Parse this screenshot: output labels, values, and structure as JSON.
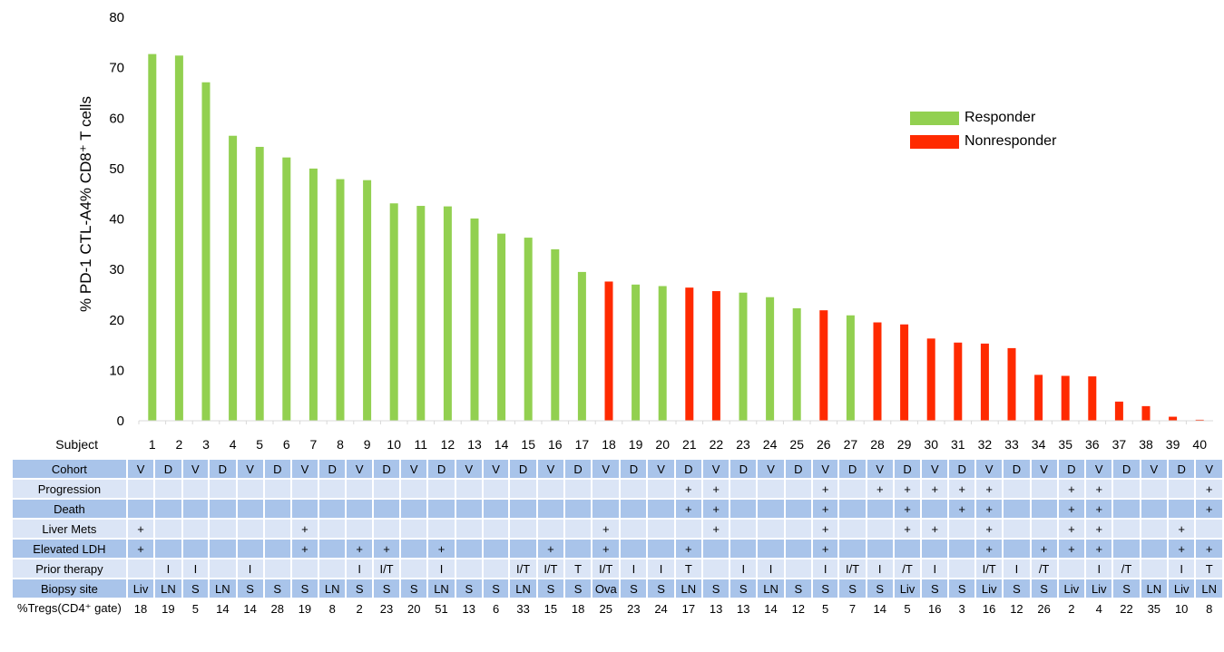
{
  "chart_data": {
    "type": "bar",
    "ylabel": "% PD-1 CTL-A4% CD8⁺ T cells",
    "ylim": [
      0,
      80
    ],
    "yticks": [
      0,
      10,
      20,
      30,
      40,
      50,
      60,
      70,
      80
    ],
    "categories": [
      "1",
      "2",
      "3",
      "4",
      "5",
      "6",
      "7",
      "8",
      "9",
      "10",
      "11",
      "12",
      "13",
      "14",
      "15",
      "16",
      "17",
      "18",
      "19",
      "20",
      "21",
      "22",
      "23",
      "24",
      "25",
      "26",
      "27",
      "28",
      "29",
      "30",
      "31",
      "32",
      "33",
      "34",
      "35",
      "36",
      "37",
      "38",
      "39",
      "40"
    ],
    "values": [
      72.7,
      72.4,
      67.1,
      56.5,
      54.3,
      52.2,
      50.0,
      47.9,
      47.7,
      43.1,
      42.6,
      42.5,
      40.1,
      37.1,
      36.3,
      34.0,
      29.5,
      27.6,
      27.0,
      26.7,
      26.4,
      25.7,
      25.4,
      24.5,
      22.3,
      21.9,
      20.9,
      19.5,
      19.1,
      16.3,
      15.5,
      15.3,
      14.4,
      9.1,
      8.9,
      8.8,
      3.8,
      2.9,
      0.8,
      0.2
    ],
    "groups": [
      "Responder",
      "Responder",
      "Responder",
      "Responder",
      "Responder",
      "Responder",
      "Responder",
      "Responder",
      "Responder",
      "Responder",
      "Responder",
      "Responder",
      "Responder",
      "Responder",
      "Responder",
      "Responder",
      "Responder",
      "Nonresponder",
      "Responder",
      "Responder",
      "Nonresponder",
      "Nonresponder",
      "Responder",
      "Responder",
      "Responder",
      "Nonresponder",
      "Responder",
      "Nonresponder",
      "Nonresponder",
      "Nonresponder",
      "Nonresponder",
      "Nonresponder",
      "Nonresponder",
      "Nonresponder",
      "Nonresponder",
      "Nonresponder",
      "Nonresponder",
      "Nonresponder",
      "Nonresponder",
      "Nonresponder"
    ],
    "legend": [
      {
        "name": "Responder",
        "color": "#92d050"
      },
      {
        "name": "Nonresponder",
        "color": "#ff2a00"
      }
    ],
    "legend_placement": "top-right",
    "grid": false
  },
  "table": {
    "subject_label": "Subject",
    "rows": [
      {
        "label": "Cohort",
        "values": [
          "V",
          "D",
          "V",
          "D",
          "V",
          "D",
          "V",
          "D",
          "V",
          "D",
          "V",
          "D",
          "V",
          "V",
          "D",
          "V",
          "D",
          "V",
          "D",
          "V",
          "D",
          "V",
          "D",
          "V",
          "D",
          "V",
          "D",
          "V",
          "D",
          "V",
          "D",
          "V",
          "D",
          "V",
          "D",
          "V",
          "D",
          "V",
          "D",
          "V"
        ]
      },
      {
        "label": "Progression",
        "values": [
          "",
          "",
          "",
          "",
          "",
          "",
          "",
          "",
          "",
          "",
          "",
          "",
          "",
          "",
          "",
          "",
          "",
          "",
          "",
          "",
          "+",
          "+",
          "",
          "",
          "",
          "+",
          "",
          "+",
          "+",
          "+",
          "+",
          "+",
          "",
          "",
          "+",
          "+",
          "",
          "",
          "",
          "+"
        ]
      },
      {
        "label": "Death",
        "values": [
          "",
          "",
          "",
          "",
          "",
          "",
          "",
          "",
          "",
          "",
          "",
          "",
          "",
          "",
          "",
          "",
          "",
          "",
          "",
          "",
          "+",
          "+",
          "",
          "",
          "",
          "+",
          "",
          "",
          "+",
          "",
          "+",
          "+",
          "",
          "",
          "+",
          "+",
          "",
          "",
          "",
          "+"
        ]
      },
      {
        "label": "Liver Mets",
        "values": [
          "+",
          "",
          "",
          "",
          "",
          "",
          "+",
          "",
          "",
          "",
          "",
          "",
          "",
          "",
          "",
          "",
          "",
          "+",
          "",
          "",
          "",
          "+",
          "",
          "",
          "",
          "+",
          "",
          "",
          "+",
          "+",
          "",
          "+",
          "",
          "",
          "+",
          "+",
          "",
          "",
          "+",
          ""
        ]
      },
      {
        "label": "Elevated LDH",
        "values": [
          "+",
          "",
          "",
          "",
          "",
          "",
          "+",
          "",
          "+",
          "+",
          "",
          "+",
          "",
          "",
          "",
          "+",
          "",
          "+",
          "",
          "",
          "+",
          "",
          "",
          "",
          "",
          "+",
          "",
          "",
          "",
          "",
          "",
          "+",
          "",
          "+",
          "+",
          "+",
          "",
          "",
          "+",
          "+"
        ]
      },
      {
        "label": "Prior therapy",
        "values": [
          "",
          "I",
          "I",
          "",
          "I",
          "",
          "",
          "",
          "I",
          "I/T",
          "",
          "I",
          "",
          "",
          "I/T",
          "I/T",
          "T",
          "I/T",
          "I",
          "I",
          "T",
          "",
          "I",
          "I",
          "",
          "I",
          "I/T",
          "I",
          "/T",
          "I",
          "",
          "I/T",
          "I",
          "/T",
          "",
          "I",
          "/T",
          "",
          "I",
          "T"
        ]
      },
      {
        "label": "Biopsy site",
        "values": [
          "Liv",
          "LN",
          "S",
          "LN",
          "S",
          "S",
          "S",
          "LN",
          "S",
          "S",
          "S",
          "LN",
          "S",
          "S",
          "LN",
          "S",
          "S",
          "Ova",
          "S",
          "S",
          "LN",
          "S",
          "S",
          "LN",
          "S",
          "S",
          "S",
          "S",
          "Liv",
          "S",
          "S",
          "Liv",
          "S",
          "S",
          "Liv",
          "Liv",
          "S",
          "LN",
          "Liv",
          "LN"
        ]
      },
      {
        "label": "%Tregs(CD4⁺ gate)",
        "values": [
          "18",
          "19",
          "5",
          "14",
          "14",
          "28",
          "19",
          "8",
          "2",
          "23",
          "20",
          "51",
          "13",
          "6",
          "33",
          "15",
          "18",
          "25",
          "23",
          "24",
          "17",
          "13",
          "13",
          "14",
          "12",
          "5",
          "7",
          "14",
          "5",
          "16",
          "3",
          "16",
          "12",
          "26",
          "2",
          "4",
          "22",
          "35",
          "10",
          "8"
        ]
      }
    ]
  }
}
